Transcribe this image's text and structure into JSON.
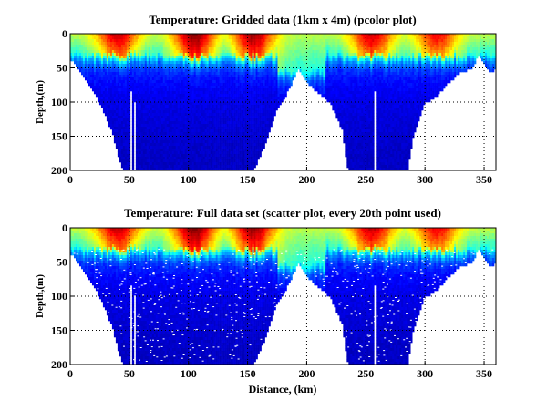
{
  "colors": {
    "background": "#ffffff",
    "axis": "#000000",
    "colormap": [
      "#00008f",
      "#0000ff",
      "#0080ff",
      "#00ffff",
      "#80ff80",
      "#ffff00",
      "#ff8000",
      "#ff0000",
      "#800000"
    ]
  },
  "chart_data": [
    {
      "type": "heatmap",
      "title": "Temperature: Gridded data (1km x 4m) (pcolor plot)",
      "xlabel": "",
      "ylabel": "Depth,(m)",
      "xlim": [
        0,
        360
      ],
      "ylim": [
        200,
        0
      ],
      "x_ticks": [
        "0",
        "50",
        "100",
        "150",
        "200",
        "250",
        "300",
        "350"
      ],
      "y_ticks": [
        "0",
        "50",
        "100",
        "150",
        "200"
      ],
      "grid": "dotted",
      "colormap": "jet",
      "bottom_profile": {
        "x": [
          0,
          5,
          15,
          25,
          35,
          42,
          45,
          155,
          165,
          175,
          185,
          193,
          200,
          210,
          220,
          230,
          235,
          285,
          290,
          300,
          310,
          320,
          330,
          340,
          345,
          355,
          360
        ],
        "depth": [
          35,
          45,
          70,
          100,
          140,
          185,
          200,
          200,
          160,
          110,
          80,
          50,
          70,
          85,
          100,
          140,
          200,
          200,
          150,
          100,
          90,
          70,
          55,
          50,
          30,
          55,
          50
        ]
      },
      "warm_cores": [
        {
          "x": 40,
          "depth": 10,
          "level": 0.85
        },
        {
          "x": 105,
          "depth": 12,
          "level": 1.0
        },
        {
          "x": 155,
          "depth": 10,
          "level": 0.95
        },
        {
          "x": 255,
          "depth": 12,
          "level": 0.85
        },
        {
          "x": 310,
          "depth": 8,
          "level": 0.75
        }
      ]
    },
    {
      "type": "scatter",
      "title": "Temperature: Full data set (scatter plot, every 20th point used)",
      "xlabel": "Distance, (km)",
      "ylabel": "Depth,(m)",
      "xlim": [
        0,
        360
      ],
      "ylim": [
        200,
        0
      ],
      "x_ticks": [
        "0",
        "50",
        "100",
        "150",
        "200",
        "250",
        "300",
        "350"
      ],
      "y_ticks": [
        "0",
        "50",
        "100",
        "150",
        "200"
      ],
      "grid": "dotted",
      "colormap": "jet"
    }
  ]
}
